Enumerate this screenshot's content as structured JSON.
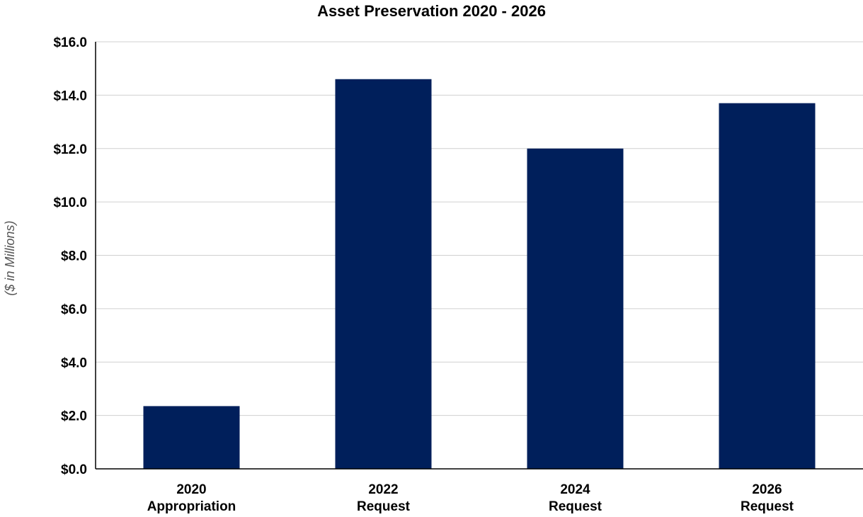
{
  "chart_data": {
    "type": "bar",
    "title": "Asset Preservation 2020 - 2026",
    "ylabel": "($ in Millions)",
    "xlabel": "",
    "categories": [
      [
        "2020",
        "Appropriation"
      ],
      [
        "2022",
        "Request"
      ],
      [
        "2024",
        "Request"
      ],
      [
        "2026",
        "Request"
      ]
    ],
    "values": [
      2.35,
      14.6,
      12.0,
      13.7
    ],
    "ylim": [
      0,
      16
    ],
    "yticks": [
      0,
      2,
      4,
      6,
      8,
      10,
      12,
      14,
      16
    ],
    "ytick_labels": [
      "$0.0",
      "$2.0",
      "$4.0",
      "$6.0",
      "$8.0",
      "$10.0",
      "$12.0",
      "$14.0",
      "$16.0"
    ],
    "grid": true,
    "bar_color": "#001f5b",
    "grid_color": "#d0d0d0"
  }
}
